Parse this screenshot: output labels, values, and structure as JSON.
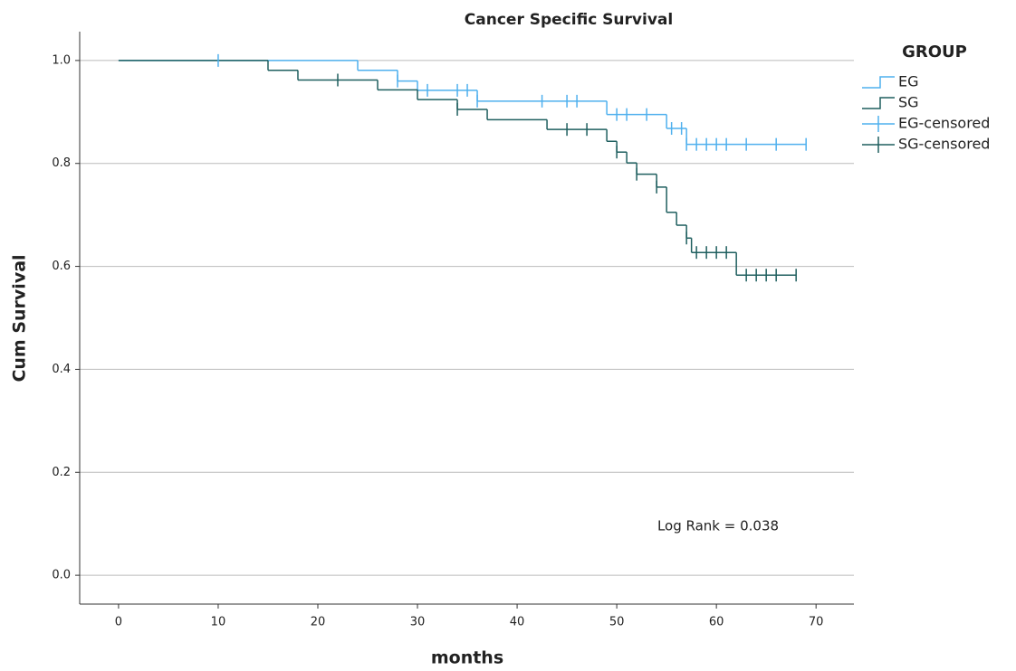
{
  "chart_data": {
    "type": "km",
    "title": "Cancer Specific Survival",
    "x_label": "months",
    "y_label": "Cum Survival",
    "annotation": "Log Rank = 0.038",
    "legend_title": "GROUP",
    "xlim": [
      -3.9,
      73.8
    ],
    "ylim": [
      -0.056,
      1.056
    ],
    "xticks": [
      0,
      10,
      20,
      30,
      40,
      50,
      60,
      70
    ],
    "yticks": [
      {
        "value": 0,
        "label": "0.0"
      },
      0.2,
      0.4,
      0.6,
      0.8,
      {
        "value": 1,
        "label": "1.0"
      }
    ],
    "grid": true,
    "series": [
      {
        "name": "EG",
        "style": "step",
        "color": "#4fb0ee",
        "x": [
          0,
          24,
          28,
          30,
          36,
          49,
          55,
          57,
          69
        ],
        "values": [
          1,
          0.981,
          0.96,
          0.942,
          0.921,
          0.895,
          0.868,
          0.837,
          0.837
        ]
      },
      {
        "name": "SG",
        "style": "step",
        "color": "#1f5f5f",
        "x": [
          0,
          15,
          18,
          26,
          30,
          34,
          37,
          43,
          49,
          50,
          51,
          52,
          54,
          55,
          56,
          57,
          57.5,
          62,
          68
        ],
        "values": [
          1,
          0.981,
          0.962,
          0.943,
          0.924,
          0.905,
          0.885,
          0.866,
          0.843,
          0.822,
          0.801,
          0.779,
          0.754,
          0.705,
          0.68,
          0.655,
          0.627,
          0.583,
          0.583
        ]
      },
      {
        "name": "EG-censored",
        "style": "censor",
        "color": "#4fb0ee",
        "x": [
          10,
          28,
          31,
          34,
          35,
          36,
          42.5,
          45,
          46,
          50,
          51,
          53,
          55.5,
          56.5,
          57,
          58,
          59,
          60,
          61,
          63,
          66,
          69
        ],
        "values": [
          1,
          0.96,
          0.942,
          0.942,
          0.942,
          0.921,
          0.921,
          0.921,
          0.921,
          0.895,
          0.895,
          0.895,
          0.868,
          0.868,
          0.837,
          0.837,
          0.837,
          0.837,
          0.837,
          0.837,
          0.837,
          0.837
        ]
      },
      {
        "name": "SG-censored",
        "style": "censor",
        "color": "#1f5f5f",
        "x": [
          22,
          34,
          45,
          47,
          50,
          52,
          54,
          57,
          58,
          59,
          60,
          61,
          63,
          64,
          65,
          66,
          68
        ],
        "values": [
          0.962,
          0.905,
          0.866,
          0.866,
          0.822,
          0.779,
          0.754,
          0.655,
          0.627,
          0.627,
          0.627,
          0.627,
          0.583,
          0.583,
          0.583,
          0.583,
          0.583
        ]
      }
    ]
  }
}
